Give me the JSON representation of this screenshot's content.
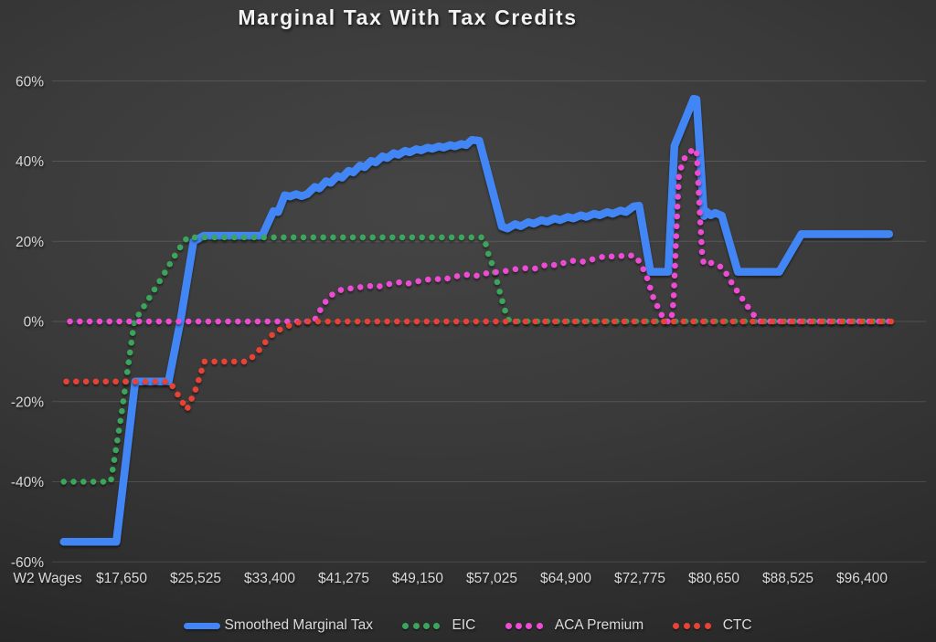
{
  "chart_data": {
    "type": "line",
    "title": "Marginal Tax With Tax Credits",
    "grid": true,
    "legend_position": "bottom",
    "background_color": "#383838",
    "grid_color": "rgba(255,255,255,0.13)",
    "text_color": "#d9d9d9",
    "x_axis": {
      "label": "W2 Wages",
      "tick_labels": [
        "$17,650",
        "$25,525",
        "$33,400",
        "$41,275",
        "$49,150",
        "$57,025",
        "$64,900",
        "$72,775",
        "$80,650",
        "$88,525",
        "$96,400"
      ],
      "tick_values": [
        17650,
        25525,
        33400,
        41275,
        49150,
        57025,
        64900,
        72775,
        80650,
        88525,
        96400
      ],
      "tick_step": 7875,
      "range_wages": [
        11500,
        99800
      ]
    },
    "y_axis": {
      "unit": "%",
      "tick_labels": [
        "60%",
        "40%",
        "20%",
        "0%",
        "-20%",
        "-40%",
        "-60%"
      ],
      "tick_values": [
        60,
        40,
        20,
        0,
        -20,
        -40,
        -60
      ],
      "range_pct": [
        -60,
        60
      ]
    },
    "legend": [
      {
        "label": "Smoothed Marginal Tax",
        "style": "solid",
        "color": "#4286f5"
      },
      {
        "label": "EIC",
        "style": "dotted",
        "color": "#3aa55c"
      },
      {
        "label": "ACA Premium",
        "style": "dotted",
        "color": "#ee4cd4"
      },
      {
        "label": "CTC",
        "style": "dotted",
        "color": "#e84335"
      }
    ],
    "series": [
      {
        "name": "Smoothed Marginal Tax",
        "style": "solid",
        "color": "#4286f5",
        "width": 8.5,
        "dash_phase": 0,
        "points": [
          [
            11500,
            -55
          ],
          [
            17100,
            -55
          ],
          [
            19100,
            -15
          ],
          [
            22650,
            -15
          ],
          [
            23900,
            0
          ],
          [
            25300,
            20
          ],
          [
            26400,
            21.4
          ],
          [
            32600,
            21.4
          ],
          [
            33800,
            27.5
          ],
          [
            34300,
            27.3
          ],
          [
            35000,
            31.5
          ],
          [
            35600,
            31.2
          ],
          [
            36200,
            31.8
          ],
          [
            36800,
            31.3
          ],
          [
            37400,
            31.8
          ],
          [
            38200,
            33.6
          ],
          [
            38700,
            33.2
          ],
          [
            39400,
            35.0
          ],
          [
            39900,
            34.6
          ],
          [
            40600,
            36.3
          ],
          [
            41100,
            35.9
          ],
          [
            41800,
            37.6
          ],
          [
            42300,
            37.2
          ],
          [
            43000,
            38.9
          ],
          [
            43500,
            38.5
          ],
          [
            44200,
            40.1
          ],
          [
            44700,
            39.7
          ],
          [
            45400,
            41.2
          ],
          [
            45900,
            40.8
          ],
          [
            46600,
            42.0
          ],
          [
            47100,
            41.6
          ],
          [
            47800,
            42.6
          ],
          [
            48300,
            42.2
          ],
          [
            49000,
            43.0
          ],
          [
            49500,
            42.7
          ],
          [
            50200,
            43.4
          ],
          [
            50700,
            43.1
          ],
          [
            51400,
            43.7
          ],
          [
            51900,
            43.4
          ],
          [
            52600,
            44.0
          ],
          [
            53100,
            43.7
          ],
          [
            53800,
            44.3
          ],
          [
            54300,
            44.0
          ],
          [
            54900,
            45.3
          ],
          [
            55700,
            45.1
          ],
          [
            58100,
            23.7
          ],
          [
            58700,
            23.2
          ],
          [
            59500,
            24.3
          ],
          [
            60100,
            23.8
          ],
          [
            60900,
            24.8
          ],
          [
            61500,
            24.4
          ],
          [
            62300,
            25.3
          ],
          [
            62900,
            24.9
          ],
          [
            63700,
            25.7
          ],
          [
            64300,
            25.3
          ],
          [
            65100,
            26.1
          ],
          [
            65700,
            25.7
          ],
          [
            66500,
            26.5
          ],
          [
            67100,
            26.1
          ],
          [
            67900,
            26.9
          ],
          [
            68500,
            26.5
          ],
          [
            69300,
            27.3
          ],
          [
            69900,
            26.9
          ],
          [
            70700,
            27.7
          ],
          [
            71300,
            27.3
          ],
          [
            72100,
            28.7
          ],
          [
            72700,
            28.9
          ],
          [
            73900,
            12.4
          ],
          [
            75800,
            12.4
          ],
          [
            76450,
            43.8
          ],
          [
            78500,
            55.6
          ],
          [
            78800,
            55.4
          ],
          [
            79600,
            26.3
          ],
          [
            79900,
            27.4
          ],
          [
            80300,
            26.5
          ],
          [
            80800,
            27.1
          ],
          [
            81500,
            26.4
          ],
          [
            83200,
            12.4
          ],
          [
            87600,
            12.4
          ],
          [
            89950,
            21.8
          ],
          [
            99300,
            21.8
          ]
        ]
      },
      {
        "name": "EIC",
        "style": "dotted",
        "color": "#3aa55c",
        "width": 6.5,
        "dash_phase": 0,
        "points": [
          [
            11500,
            -40
          ],
          [
            16500,
            -40
          ],
          [
            17650,
            -23
          ],
          [
            19000,
            0
          ],
          [
            20500,
            5.5
          ],
          [
            22200,
            12
          ],
          [
            23600,
            17.6
          ],
          [
            24650,
            21
          ],
          [
            56200,
            21
          ],
          [
            56700,
            16.5
          ],
          [
            57200,
            13.5
          ],
          [
            57800,
            8
          ],
          [
            58400,
            3
          ],
          [
            58900,
            0
          ],
          [
            99700,
            0
          ]
        ]
      },
      {
        "name": "ACA Premium",
        "style": "dotted",
        "color": "#ee4cd4",
        "width": 6.5,
        "dash_phase": 4,
        "points": [
          [
            11500,
            0
          ],
          [
            38100,
            0
          ],
          [
            38700,
            2.5
          ],
          [
            39200,
            4.5
          ],
          [
            39700,
            6
          ],
          [
            40200,
            7
          ],
          [
            41100,
            8
          ],
          [
            42600,
            8.4
          ],
          [
            44000,
            8.9
          ],
          [
            44600,
            8.5
          ],
          [
            46000,
            9.3
          ],
          [
            47500,
            9.9
          ],
          [
            48200,
            9.5
          ],
          [
            49500,
            10.2
          ],
          [
            51000,
            10.7
          ],
          [
            51800,
            10.4
          ],
          [
            53000,
            11.2
          ],
          [
            54500,
            11.7
          ],
          [
            55500,
            11.4
          ],
          [
            56700,
            12.2
          ],
          [
            58100,
            12.4
          ],
          [
            59100,
            12.9
          ],
          [
            60400,
            13.3
          ],
          [
            61500,
            13.1
          ],
          [
            63000,
            14.3
          ],
          [
            64000,
            14.0
          ],
          [
            65000,
            14.9
          ],
          [
            65900,
            15.2
          ],
          [
            66800,
            14.9
          ],
          [
            68400,
            15.9
          ],
          [
            69300,
            16.4
          ],
          [
            70100,
            16.1
          ],
          [
            71500,
            16.6
          ],
          [
            72400,
            16.2
          ],
          [
            73400,
            12
          ],
          [
            74200,
            6
          ],
          [
            75000,
            2
          ],
          [
            75500,
            0
          ],
          [
            76100,
            0
          ],
          [
            76350,
            5
          ],
          [
            76500,
            13
          ],
          [
            76650,
            22
          ],
          [
            76800,
            30
          ],
          [
            76950,
            37
          ],
          [
            77580,
            41
          ],
          [
            78200,
            42.5
          ],
          [
            78800,
            43
          ],
          [
            79000,
            34
          ],
          [
            79200,
            25
          ],
          [
            79400,
            17
          ],
          [
            79550,
            14.6
          ],
          [
            79900,
            14.2
          ],
          [
            80300,
            14.7
          ],
          [
            80900,
            13.9
          ],
          [
            81500,
            13.6
          ],
          [
            82000,
            11.8
          ],
          [
            82450,
            10
          ],
          [
            83400,
            6.6
          ],
          [
            84400,
            3.2
          ],
          [
            85400,
            0
          ],
          [
            99700,
            0
          ]
        ]
      },
      {
        "name": "CTC",
        "style": "dotted",
        "color": "#e84335",
        "width": 6.5,
        "dash_phase": 8,
        "points": [
          [
            11500,
            -15
          ],
          [
            22750,
            -15
          ],
          [
            23700,
            -18.5
          ],
          [
            24600,
            -22
          ],
          [
            25600,
            -16.5
          ],
          [
            26450,
            -10
          ],
          [
            31000,
            -10
          ],
          [
            32000,
            -8
          ],
          [
            33000,
            -5
          ],
          [
            34000,
            -2.5
          ],
          [
            35500,
            -1
          ],
          [
            36800,
            0
          ],
          [
            99700,
            0
          ]
        ]
      }
    ]
  }
}
